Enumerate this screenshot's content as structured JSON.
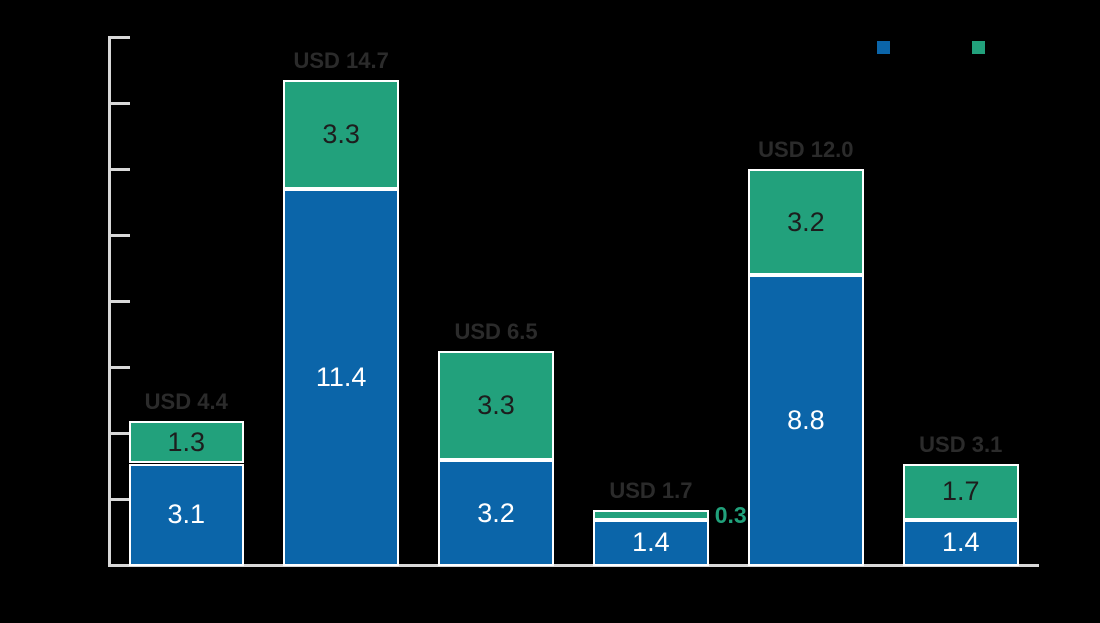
{
  "chart_data": {
    "type": "bar",
    "stacked": true,
    "orientation": "vertical",
    "title": "",
    "categories": [
      "",
      "",
      "",
      "",
      "",
      ""
    ],
    "series": [
      {
        "name": "blue-series",
        "color": "#0b65a9",
        "label_color": "#ffffff",
        "values": [
          3.1,
          11.4,
          3.2,
          1.4,
          8.8,
          1.4
        ],
        "labels": [
          "3.1",
          "11.4",
          "3.2",
          "1.4",
          "8.8",
          "1.4"
        ]
      },
      {
        "name": "green-series",
        "color": "#22a17c",
        "label_color": "#1d1d1d",
        "values": [
          1.3,
          3.3,
          3.3,
          0.3,
          3.2,
          1.7
        ],
        "labels": [
          "1.3",
          "3.3",
          "3.3",
          "0.3",
          "3.2",
          "1.7"
        ]
      }
    ],
    "totals": [
      4.4,
      14.7,
      6.5,
      1.7,
      12.0,
      3.1
    ],
    "total_labels": [
      "USD 4.4",
      "USD 14.7",
      "USD 6.5",
      "USD 1.7",
      "USD 12.0",
      "USD 3.1"
    ],
    "total_label_color": "#2b2b2b",
    "outside_green_label": {
      "bar_index": 3,
      "text": "0.3",
      "color": "#21a17b"
    },
    "y_axis": {
      "min": 0,
      "max": 16,
      "tick_step": 2,
      "tick_labels_visible": false
    },
    "x_axis": {
      "tick_labels_visible": false
    },
    "axis_color": "#d9d9d9",
    "bar_border_color": "#ffffff",
    "grid": false,
    "legend": {
      "position": "top-right",
      "labels_visible": false,
      "swatches": [
        {
          "name": "blue-series",
          "color": "#0b65a9"
        },
        {
          "name": "green-series",
          "color": "#22a17c"
        }
      ]
    }
  }
}
